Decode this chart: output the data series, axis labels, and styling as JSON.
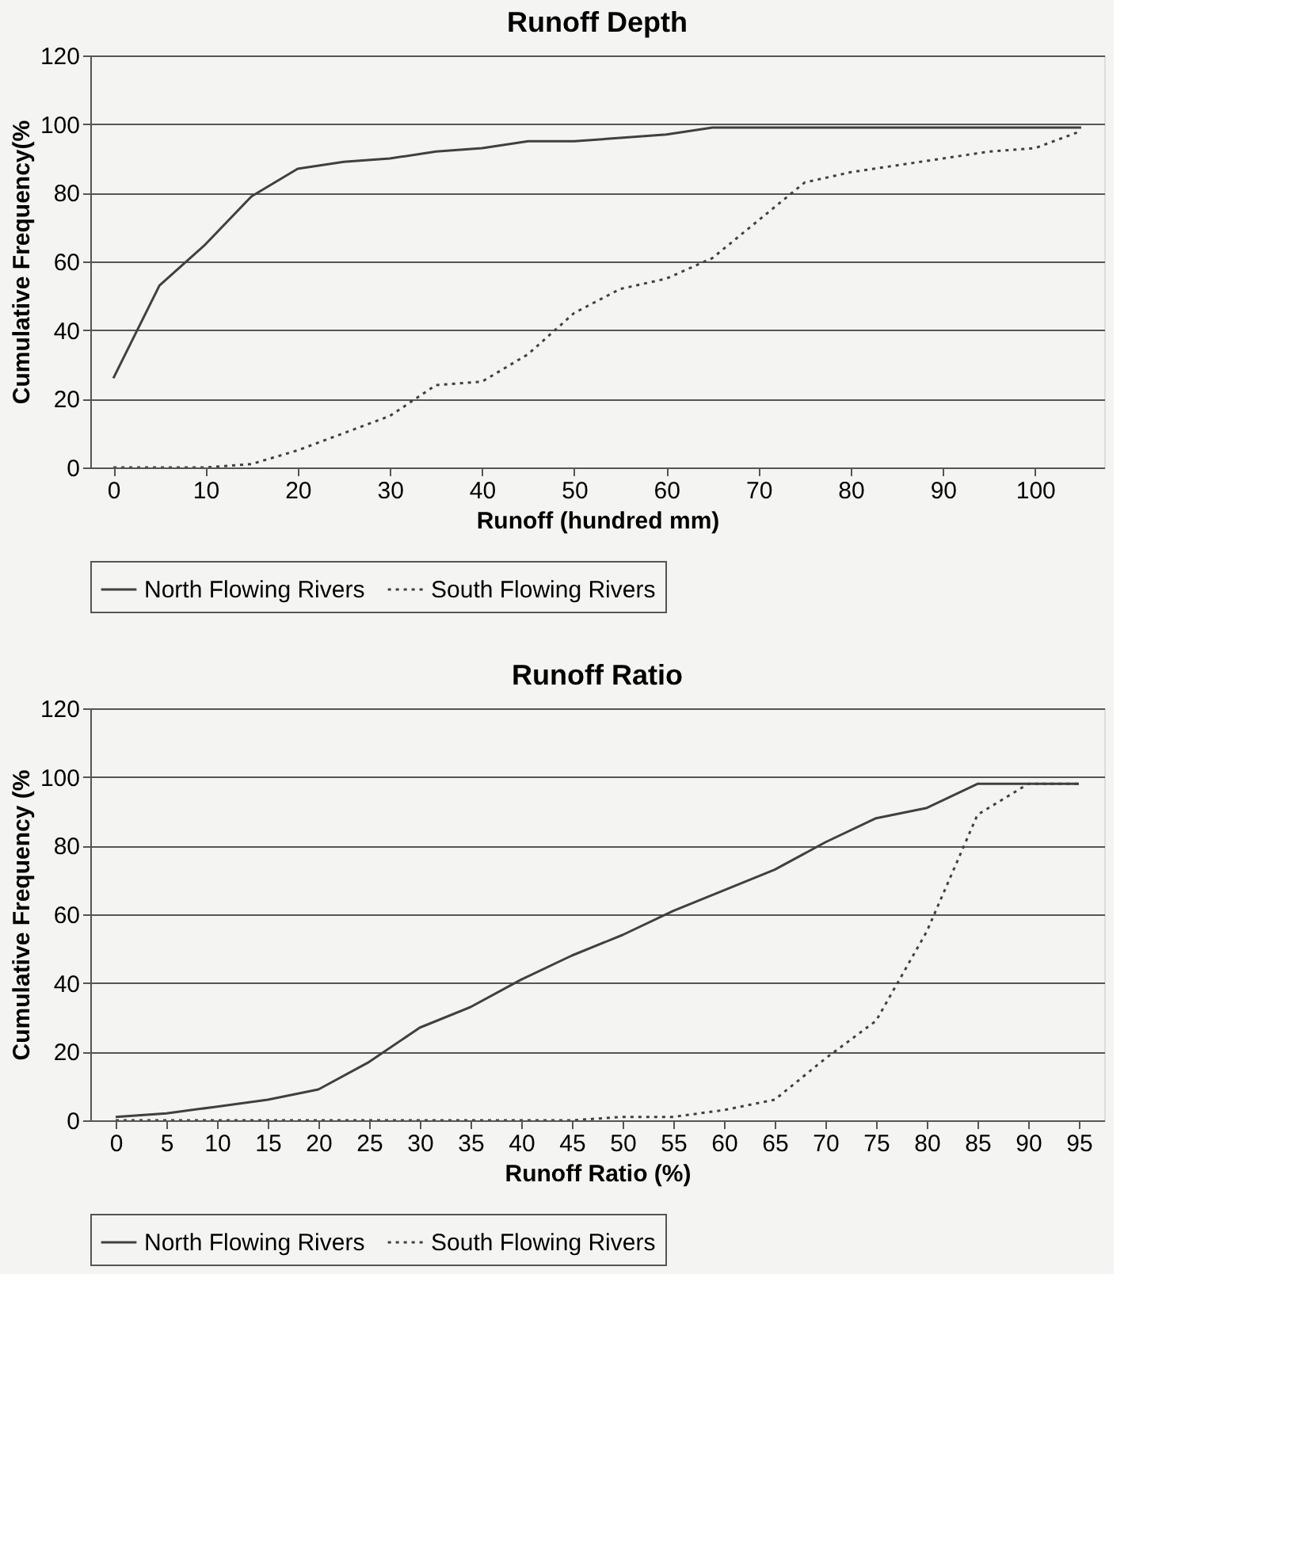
{
  "chart_data": [
    {
      "type": "line",
      "title": "Runoff Depth",
      "xlabel": "Runoff  (hundred mm)",
      "ylabel": "Cumulative Frequency(%",
      "x": [
        0,
        5,
        10,
        15,
        20,
        25,
        30,
        35,
        40,
        45,
        50,
        55,
        60,
        65,
        70,
        75,
        80,
        85,
        90,
        95,
        100,
        105
      ],
      "xlim": [
        -2.5,
        107.5
      ],
      "xticks": [
        0,
        10,
        20,
        30,
        40,
        50,
        60,
        70,
        80,
        90,
        100
      ],
      "ylim": [
        0,
        120
      ],
      "yticks": [
        0,
        20,
        40,
        60,
        80,
        100,
        120
      ],
      "grid": "y",
      "legend": "bottom",
      "marker": "none",
      "series": [
        {
          "name": "North Flowing Rivers",
          "color": "#404040",
          "line_style": "solid",
          "values": [
            26,
            53,
            65,
            79,
            87,
            89,
            90,
            92,
            93,
            95,
            95,
            96,
            97,
            99,
            99,
            99,
            99,
            99,
            99,
            99,
            99,
            99
          ]
        },
        {
          "name": "South Flowing Rivers",
          "color": "#404040",
          "line_style": "dotted",
          "values": [
            0,
            0,
            0,
            1,
            5,
            10,
            15,
            24,
            25,
            33,
            45,
            52,
            55,
            61,
            72,
            83,
            86,
            88,
            90,
            92,
            93,
            98
          ]
        }
      ]
    },
    {
      "type": "line",
      "title": "Runoff Ratio",
      "xlabel": "Runoff Ratio  (%)",
      "ylabel": "Cumulative Frequency (%",
      "x": [
        0,
        5,
        10,
        15,
        20,
        25,
        30,
        35,
        40,
        45,
        50,
        55,
        60,
        65,
        70,
        75,
        80,
        85,
        90,
        95
      ],
      "xlim": [
        -2.5,
        97.5
      ],
      "xticks": [
        0,
        5,
        10,
        15,
        20,
        25,
        30,
        35,
        40,
        45,
        50,
        55,
        60,
        65,
        70,
        75,
        80,
        85,
        90,
        95
      ],
      "ylim": [
        0,
        120
      ],
      "yticks": [
        0,
        20,
        40,
        60,
        80,
        100,
        120
      ],
      "grid": "y",
      "legend": "bottom",
      "marker": "none",
      "series": [
        {
          "name": "North Flowing Rivers",
          "color": "#404040",
          "line_style": "solid",
          "values": [
            1,
            2,
            4,
            6,
            9,
            17,
            27,
            33,
            41,
            48,
            54,
            61,
            67,
            73,
            81,
            88,
            91,
            98,
            98,
            98
          ]
        },
        {
          "name": "South Flowing Rivers",
          "color": "#404040",
          "line_style": "dotted",
          "values": [
            0,
            0,
            0,
            0,
            0,
            0,
            0,
            0,
            0,
            0,
            1,
            1,
            3,
            6,
            18,
            29,
            55,
            89,
            98,
            98
          ]
        }
      ]
    }
  ]
}
